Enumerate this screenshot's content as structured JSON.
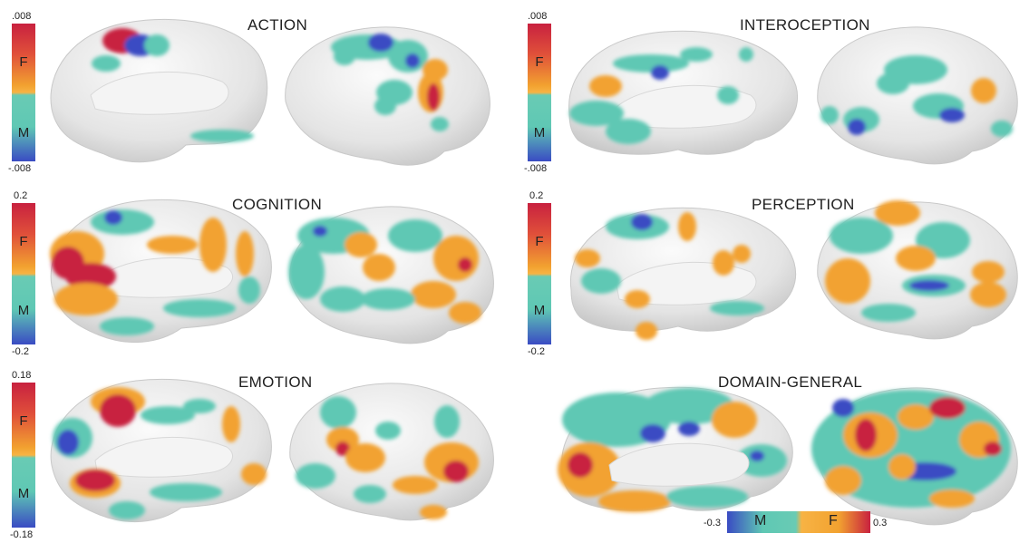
{
  "panels": {
    "action": {
      "title": "ACTION",
      "scale_max": ".008",
      "scale_min": "-.008"
    },
    "interoception": {
      "title": "INTEROCEPTION",
      "scale_max": ".008",
      "scale_min": "-.008"
    },
    "cognition": {
      "title": "COGNITION",
      "scale_max": "0.2",
      "scale_min": "-0.2"
    },
    "perception": {
      "title": "PERCEPTION",
      "scale_max": "0.2",
      "scale_min": "-0.2"
    },
    "emotion": {
      "title": "EMOTION",
      "scale_max": "0.18",
      "scale_min": "-0.18"
    },
    "domain_general": {
      "title": "DOMAIN-GENERAL",
      "scale_min": "-0.3",
      "scale_max": "0.3"
    }
  },
  "legend_letters": {
    "female": "F",
    "male": "M"
  },
  "colors": {
    "cortex": "#e6e6e6",
    "female_high": "#c8213f",
    "female_mid": "#f2a230",
    "male_mid": "#5fc8b4",
    "male_high": "#3a4bc3"
  }
}
